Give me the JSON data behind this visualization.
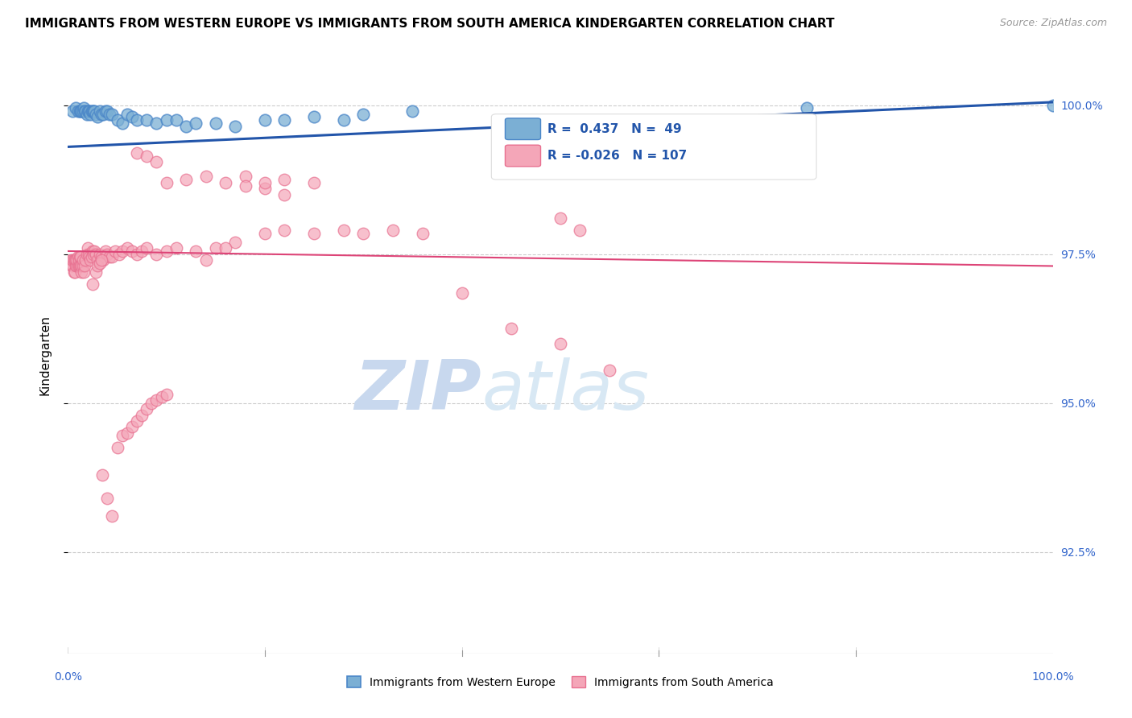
{
  "title": "IMMIGRANTS FROM WESTERN EUROPE VS IMMIGRANTS FROM SOUTH AMERICA KINDERGARTEN CORRELATION CHART",
  "source_text": "Source: ZipAtlas.com",
  "ylabel": "Kindergarten",
  "xmin": 0.0,
  "xmax": 1.0,
  "ymin": 0.908,
  "ymax": 1.008,
  "yticks": [
    0.925,
    0.95,
    0.975,
    1.0
  ],
  "ytick_labels": [
    "92.5%",
    "95.0%",
    "97.5%",
    "100.0%"
  ],
  "blue_R": 0.437,
  "blue_N": 49,
  "pink_R": -0.026,
  "pink_N": 107,
  "blue_color": "#7BAFD4",
  "blue_edge_color": "#4A86C8",
  "pink_color": "#F4A6B8",
  "pink_edge_color": "#E87090",
  "blue_line_color": "#2255AA",
  "pink_line_color": "#DD4477",
  "watermark_zip": "ZIP",
  "watermark_atlas": "atlas",
  "legend_label_blue": "Immigrants from Western Europe",
  "legend_label_pink": "Immigrants from South America",
  "blue_trend_x0": 0.0,
  "blue_trend_y0": 0.993,
  "blue_trend_x1": 1.0,
  "blue_trend_y1": 1.0005,
  "pink_trend_x0": 0.0,
  "pink_trend_y0": 0.9755,
  "pink_trend_x1": 1.0,
  "pink_trend_y1": 0.973,
  "blue_scatter_x": [
    0.005,
    0.008,
    0.01,
    0.012,
    0.013,
    0.014,
    0.015,
    0.016,
    0.017,
    0.018,
    0.019,
    0.02,
    0.021,
    0.022,
    0.023,
    0.024,
    0.025,
    0.026,
    0.027,
    0.028,
    0.03,
    0.032,
    0.034,
    0.036,
    0.038,
    0.04,
    0.042,
    0.045,
    0.05,
    0.055,
    0.06,
    0.065,
    0.07,
    0.08,
    0.09,
    0.1,
    0.11,
    0.12,
    0.13,
    0.15,
    0.17,
    0.2,
    0.22,
    0.25,
    0.28,
    0.3,
    0.35,
    0.75,
    1.0
  ],
  "blue_scatter_y": [
    0.999,
    0.9995,
    0.999,
    0.999,
    0.999,
    0.999,
    0.999,
    0.9995,
    0.999,
    0.999,
    0.9985,
    0.999,
    0.999,
    0.999,
    0.9985,
    0.999,
    0.999,
    0.999,
    0.999,
    0.9985,
    0.998,
    0.999,
    0.9985,
    0.9985,
    0.999,
    0.999,
    0.9985,
    0.9985,
    0.9975,
    0.997,
    0.9985,
    0.998,
    0.9975,
    0.9975,
    0.997,
    0.9975,
    0.9975,
    0.9965,
    0.997,
    0.997,
    0.9965,
    0.9975,
    0.9975,
    0.998,
    0.9975,
    0.9985,
    0.999,
    0.9995,
    1.0
  ],
  "pink_scatter_x": [
    0.003,
    0.004,
    0.005,
    0.005,
    0.006,
    0.006,
    0.007,
    0.007,
    0.008,
    0.008,
    0.009,
    0.009,
    0.01,
    0.01,
    0.011,
    0.011,
    0.012,
    0.012,
    0.013,
    0.013,
    0.014,
    0.014,
    0.015,
    0.015,
    0.016,
    0.017,
    0.018,
    0.019,
    0.02,
    0.021,
    0.022,
    0.023,
    0.024,
    0.025,
    0.026,
    0.027,
    0.028,
    0.03,
    0.032,
    0.034,
    0.036,
    0.038,
    0.04,
    0.042,
    0.045,
    0.048,
    0.052,
    0.055,
    0.06,
    0.065,
    0.07,
    0.075,
    0.08,
    0.09,
    0.1,
    0.11,
    0.13,
    0.15,
    0.17,
    0.2,
    0.22,
    0.25,
    0.28,
    0.3,
    0.33,
    0.36,
    0.4,
    0.45,
    0.5,
    0.55,
    0.5,
    0.52,
    0.18,
    0.2,
    0.22,
    0.14,
    0.16,
    0.07,
    0.08,
    0.09,
    0.035,
    0.04,
    0.045,
    0.05,
    0.055,
    0.06,
    0.065,
    0.07,
    0.075,
    0.08,
    0.085,
    0.09,
    0.095,
    0.1,
    0.025,
    0.028,
    0.03,
    0.032,
    0.034,
    0.1,
    0.12,
    0.14,
    0.16,
    0.18,
    0.2,
    0.22,
    0.25
  ],
  "pink_scatter_y": [
    0.974,
    0.973,
    0.973,
    0.974,
    0.972,
    0.974,
    0.972,
    0.974,
    0.973,
    0.974,
    0.973,
    0.974,
    0.973,
    0.9745,
    0.973,
    0.974,
    0.973,
    0.9745,
    0.973,
    0.9745,
    0.972,
    0.973,
    0.973,
    0.974,
    0.972,
    0.973,
    0.974,
    0.975,
    0.976,
    0.975,
    0.9745,
    0.974,
    0.9745,
    0.9755,
    0.975,
    0.9755,
    0.975,
    0.974,
    0.975,
    0.9745,
    0.974,
    0.9755,
    0.975,
    0.9745,
    0.9745,
    0.9755,
    0.975,
    0.9755,
    0.976,
    0.9755,
    0.975,
    0.9755,
    0.976,
    0.975,
    0.9755,
    0.976,
    0.9755,
    0.976,
    0.977,
    0.9785,
    0.979,
    0.9785,
    0.979,
    0.9785,
    0.979,
    0.9785,
    0.9685,
    0.9625,
    0.96,
    0.9555,
    0.981,
    0.979,
    0.988,
    0.986,
    0.985,
    0.974,
    0.976,
    0.992,
    0.9915,
    0.9905,
    0.938,
    0.934,
    0.931,
    0.9425,
    0.9445,
    0.945,
    0.946,
    0.947,
    0.948,
    0.949,
    0.95,
    0.9505,
    0.951,
    0.9515,
    0.97,
    0.972,
    0.973,
    0.9735,
    0.974,
    0.987,
    0.9875,
    0.988,
    0.987,
    0.9865,
    0.987,
    0.9875,
    0.987
  ]
}
